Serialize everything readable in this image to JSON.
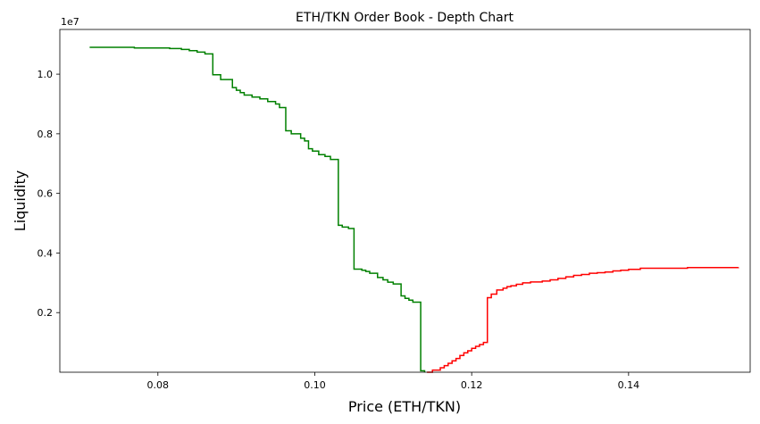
{
  "chart_data": {
    "type": "line",
    "subtype": "step",
    "title": "ETH/TKN Order Book - Depth Chart",
    "xlabel": "Price (ETH/TKN)",
    "ylabel": "Liquidity",
    "y_multiplier_label": "1e7",
    "xlim": [
      0.0675,
      0.1555
    ],
    "ylim": [
      0,
      11500000
    ],
    "x_ticks": [
      0.08,
      0.1,
      0.12,
      0.14
    ],
    "x_tick_labels": [
      "0.08",
      "0.10",
      "0.12",
      "0.14"
    ],
    "y_ticks": [
      2000000,
      4000000,
      6000000,
      8000000,
      10000000
    ],
    "y_tick_labels": [
      "0.2",
      "0.4",
      "0.6",
      "0.8",
      "1.0"
    ],
    "grid": false,
    "legend": "none",
    "series": [
      {
        "color": "#008000",
        "x": [
          0.0713,
          0.077,
          0.0815,
          0.083,
          0.084,
          0.085,
          0.086,
          0.087,
          0.088,
          0.0895,
          0.09,
          0.0905,
          0.091,
          0.092,
          0.093,
          0.094,
          0.095,
          0.0955,
          0.0963,
          0.097,
          0.0982,
          0.0987,
          0.0992,
          0.0997,
          0.1005,
          0.1013,
          0.102,
          0.103,
          0.1035,
          0.1043,
          0.105,
          0.106,
          0.1065,
          0.107,
          0.108,
          0.1087,
          0.1093,
          0.11,
          0.111,
          0.1115,
          0.112,
          0.1125,
          0.1135,
          0.114
        ],
        "values": [
          10900000,
          10880000,
          10860000,
          10830000,
          10790000,
          10740000,
          10680000,
          9980000,
          9820000,
          9550000,
          9460000,
          9380000,
          9300000,
          9230000,
          9170000,
          9080000,
          9000000,
          8880000,
          8100000,
          8000000,
          7850000,
          7760000,
          7500000,
          7420000,
          7300000,
          7240000,
          7140000,
          4930000,
          4870000,
          4820000,
          3460000,
          3420000,
          3380000,
          3320000,
          3180000,
          3100000,
          3020000,
          2960000,
          2560000,
          2480000,
          2420000,
          2350000,
          50000,
          0
        ]
      },
      {
        "color": "#ff0000",
        "x": [
          0.1143,
          0.115,
          0.116,
          0.1165,
          0.117,
          0.1175,
          0.118,
          0.1185,
          0.119,
          0.1195,
          0.12,
          0.1205,
          0.121,
          0.1215,
          0.122,
          0.1225,
          0.1232,
          0.124,
          0.1245,
          0.125,
          0.1257,
          0.1265,
          0.1275,
          0.129,
          0.13,
          0.131,
          0.132,
          0.133,
          0.134,
          0.135,
          0.136,
          0.137,
          0.138,
          0.139,
          0.14,
          0.1415,
          0.1475,
          0.154
        ],
        "values": [
          0,
          70000,
          150000,
          220000,
          300000,
          380000,
          460000,
          560000,
          650000,
          720000,
          800000,
          870000,
          930000,
          1000000,
          2500000,
          2620000,
          2760000,
          2820000,
          2870000,
          2900000,
          2950000,
          3000000,
          3030000,
          3060000,
          3100000,
          3150000,
          3200000,
          3250000,
          3280000,
          3320000,
          3340000,
          3360000,
          3400000,
          3420000,
          3450000,
          3490000,
          3510000,
          3520000
        ]
      }
    ]
  }
}
